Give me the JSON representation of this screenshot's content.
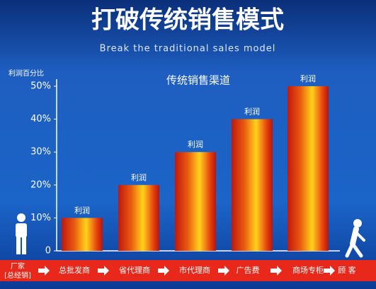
{
  "chart_data": {
    "type": "bar",
    "title": "打破传统销售模式",
    "subtitle": "Break the traditional sales model",
    "y_label": "利润百分比",
    "chart_title": "传统销售渠道",
    "categories": [
      "总批发商",
      "省代理商",
      "市代理商",
      "广告费",
      "商场专柜"
    ],
    "values": [
      10,
      20,
      30,
      40,
      50
    ],
    "bar_labels": [
      "利润",
      "利润",
      "利润",
      "利润",
      "利润"
    ],
    "start": [
      "厂家",
      "[总经销]"
    ],
    "end": "顾 客",
    "ylim": [
      0,
      50
    ],
    "yticks": [
      0,
      {
        "value": 10,
        "label": "10%"
      },
      {
        "value": 20,
        "label": "20%"
      },
      {
        "value": 30,
        "label": "30%"
      },
      {
        "value": 40,
        "label": "40%"
      },
      {
        "value": 50,
        "label": "50%"
      }
    ],
    "grid": false
  }
}
